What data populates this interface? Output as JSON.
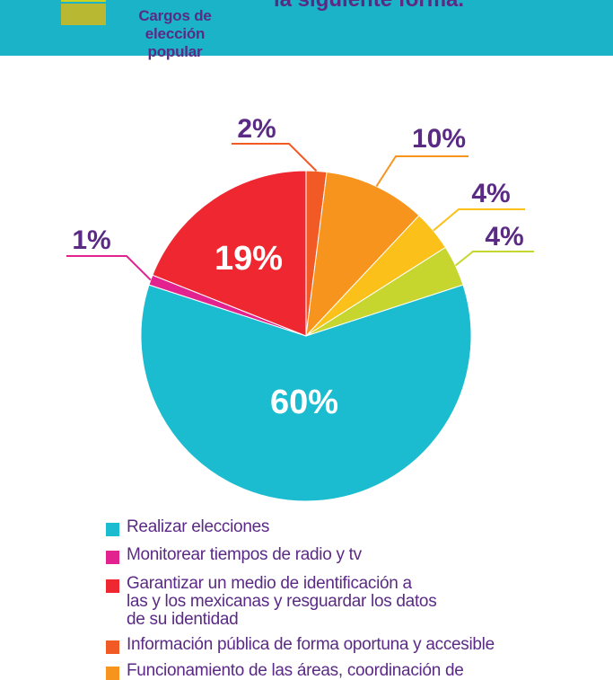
{
  "header": {
    "caption": "Cargos de elección popular",
    "heading": "la siguiente forma."
  },
  "colors": {
    "banner": "#1ab3c8",
    "label": "#5b2a85",
    "green_swatch": "#b8b832"
  },
  "chart_data": {
    "type": "pie",
    "slices": [
      {
        "category": "Realizar elecciones",
        "value": 60,
        "label": "60%",
        "color": "#1bbcd0"
      },
      {
        "category": "Monitorear tiempos de radio y tv",
        "value": 1,
        "label": "1%",
        "color": "#e2238f"
      },
      {
        "category": "Garantizar un medio de identificación a las y los mexicanas y resguardar los datos de su identidad",
        "value": 19,
        "label": "19%",
        "color": "#ee2730"
      },
      {
        "category": "Información pública de forma oportuna y accesible",
        "value": 2,
        "label": "2%",
        "color": "#f15a24"
      },
      {
        "category": "Funcionamiento de las áreas, coordinación de",
        "value": 10,
        "label": "10%",
        "color": "#f7941d"
      },
      {
        "category": "",
        "value": 4,
        "label": "4%",
        "color": "#fbc01a"
      },
      {
        "category": "",
        "value": 4,
        "label": "4%",
        "color": "#c7d62e"
      }
    ]
  },
  "legend": {
    "items": [
      {
        "lines": [
          "Realizar elecciones"
        ],
        "color": "#1bbcd0"
      },
      {
        "lines": [
          "Monitorear tiempos de radio y tv"
        ],
        "color": "#e2238f"
      },
      {
        "lines": [
          "Garantizar un medio de identificación a",
          "las y los mexicanas y resguardar los datos",
          "de su identidad"
        ],
        "color": "#ee2730"
      },
      {
        "lines": [
          "Información pública de forma oportuna y accesible"
        ],
        "color": "#f15a24"
      },
      {
        "lines": [
          "Funcionamiento de las áreas, coordinación de"
        ],
        "color": "#f7941d"
      }
    ]
  }
}
